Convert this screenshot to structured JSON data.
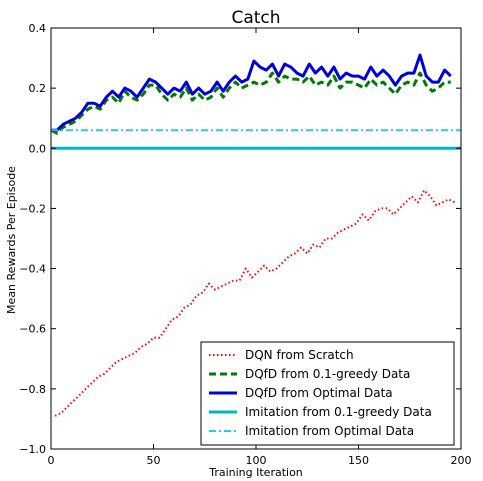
{
  "chart_data": {
    "type": "line",
    "title": "Catch",
    "xlabel": "Training Iteration",
    "ylabel": "Mean Rewards Per Episode",
    "xlim": [
      0,
      200
    ],
    "ylim": [
      -1.0,
      0.4
    ],
    "xticks": [
      "0",
      "50",
      "100",
      "150",
      "200"
    ],
    "yticks": [
      "−1.0",
      "−0.8",
      "−0.6",
      "−0.4",
      "−0.2",
      "0.0",
      "0.2",
      "0.4"
    ],
    "legend_position": "lower-right",
    "grid": false,
    "series": [
      {
        "name": "DQN from Scratch",
        "color": "#ff0000",
        "style": "dotted",
        "x": [
          2,
          5,
          8,
          11,
          14,
          17,
          20,
          23,
          26,
          29,
          32,
          35,
          38,
          41,
          44,
          47,
          50,
          53,
          56,
          59,
          62,
          65,
          68,
          71,
          74,
          77,
          80,
          83,
          86,
          89,
          92,
          95,
          98,
          101,
          104,
          107,
          110,
          113,
          116,
          119,
          122,
          125,
          128,
          131,
          134,
          137,
          140,
          143,
          146,
          149,
          152,
          155,
          158,
          161,
          164,
          167,
          170,
          173,
          176,
          179,
          182,
          185,
          188,
          191,
          194,
          197
        ],
        "values": [
          -0.89,
          -0.88,
          -0.86,
          -0.84,
          -0.82,
          -0.8,
          -0.78,
          -0.76,
          -0.75,
          -0.73,
          -0.71,
          -0.7,
          -0.69,
          -0.68,
          -0.66,
          -0.65,
          -0.63,
          -0.63,
          -0.6,
          -0.57,
          -0.56,
          -0.53,
          -0.52,
          -0.49,
          -0.48,
          -0.45,
          -0.47,
          -0.46,
          -0.45,
          -0.44,
          -0.44,
          -0.4,
          -0.43,
          -0.41,
          -0.39,
          -0.41,
          -0.4,
          -0.38,
          -0.36,
          -0.35,
          -0.33,
          -0.35,
          -0.32,
          -0.33,
          -0.3,
          -0.3,
          -0.28,
          -0.27,
          -0.26,
          -0.25,
          -0.22,
          -0.24,
          -0.21,
          -0.2,
          -0.2,
          -0.22,
          -0.2,
          -0.18,
          -0.16,
          -0.18,
          -0.14,
          -0.16,
          -0.19,
          -0.18,
          -0.17,
          -0.18
        ]
      },
      {
        "name": "DQfD from 0.1-greedy Data",
        "color": "#007a00",
        "style": "dashed",
        "x": [
          0,
          3,
          6,
          9,
          12,
          15,
          18,
          21,
          24,
          27,
          30,
          33,
          36,
          39,
          42,
          45,
          48,
          51,
          54,
          57,
          60,
          63,
          66,
          69,
          72,
          75,
          78,
          81,
          84,
          87,
          90,
          93,
          96,
          99,
          102,
          105,
          108,
          111,
          114,
          117,
          120,
          123,
          126,
          129,
          132,
          135,
          138,
          141,
          144,
          147,
          150,
          153,
          156,
          159,
          162,
          165,
          168,
          171,
          174,
          177,
          180,
          183,
          186,
          189,
          192,
          195
        ],
        "values": [
          0.06,
          0.05,
          0.07,
          0.08,
          0.09,
          0.11,
          0.13,
          0.14,
          0.13,
          0.16,
          0.17,
          0.15,
          0.19,
          0.17,
          0.16,
          0.18,
          0.21,
          0.21,
          0.18,
          0.16,
          0.18,
          0.17,
          0.2,
          0.16,
          0.18,
          0.16,
          0.17,
          0.2,
          0.17,
          0.2,
          0.22,
          0.2,
          0.21,
          0.22,
          0.21,
          0.22,
          0.25,
          0.22,
          0.24,
          0.23,
          0.23,
          0.22,
          0.24,
          0.21,
          0.22,
          0.21,
          0.24,
          0.2,
          0.22,
          0.22,
          0.21,
          0.2,
          0.23,
          0.21,
          0.22,
          0.2,
          0.18,
          0.21,
          0.22,
          0.21,
          0.25,
          0.21,
          0.19,
          0.2,
          0.22,
          0.22
        ]
      },
      {
        "name": "DQfD from Optimal Data",
        "color": "#0000dd",
        "style": "solid",
        "x": [
          0,
          3,
          6,
          9,
          12,
          15,
          18,
          21,
          24,
          27,
          30,
          33,
          36,
          39,
          42,
          45,
          48,
          51,
          54,
          57,
          60,
          63,
          66,
          69,
          72,
          75,
          78,
          81,
          84,
          87,
          90,
          93,
          96,
          99,
          102,
          105,
          108,
          111,
          114,
          117,
          120,
          123,
          126,
          129,
          132,
          135,
          138,
          141,
          144,
          147,
          150,
          153,
          156,
          159,
          162,
          165,
          168,
          171,
          174,
          177,
          180,
          183,
          186,
          189,
          192,
          195
        ],
        "values": [
          0.06,
          0.06,
          0.08,
          0.09,
          0.1,
          0.12,
          0.15,
          0.15,
          0.14,
          0.17,
          0.19,
          0.17,
          0.2,
          0.19,
          0.17,
          0.2,
          0.23,
          0.22,
          0.2,
          0.18,
          0.2,
          0.19,
          0.22,
          0.18,
          0.2,
          0.18,
          0.19,
          0.22,
          0.19,
          0.22,
          0.24,
          0.22,
          0.23,
          0.29,
          0.27,
          0.26,
          0.28,
          0.24,
          0.28,
          0.27,
          0.25,
          0.24,
          0.28,
          0.25,
          0.27,
          0.24,
          0.27,
          0.23,
          0.25,
          0.24,
          0.24,
          0.23,
          0.27,
          0.24,
          0.26,
          0.24,
          0.21,
          0.24,
          0.25,
          0.25,
          0.31,
          0.24,
          0.22,
          0.22,
          0.26,
          0.24
        ]
      },
      {
        "name": "Imitation from 0.1-greedy Data",
        "color": "#00b5c6",
        "style": "solid",
        "x": [
          0,
          200
        ],
        "values": [
          0.0,
          0.0
        ]
      },
      {
        "name": "Imitation from Optimal Data",
        "color": "#2cc8e4",
        "style": "dashdot",
        "x": [
          0,
          200
        ],
        "values": [
          0.06,
          0.06
        ]
      }
    ]
  }
}
